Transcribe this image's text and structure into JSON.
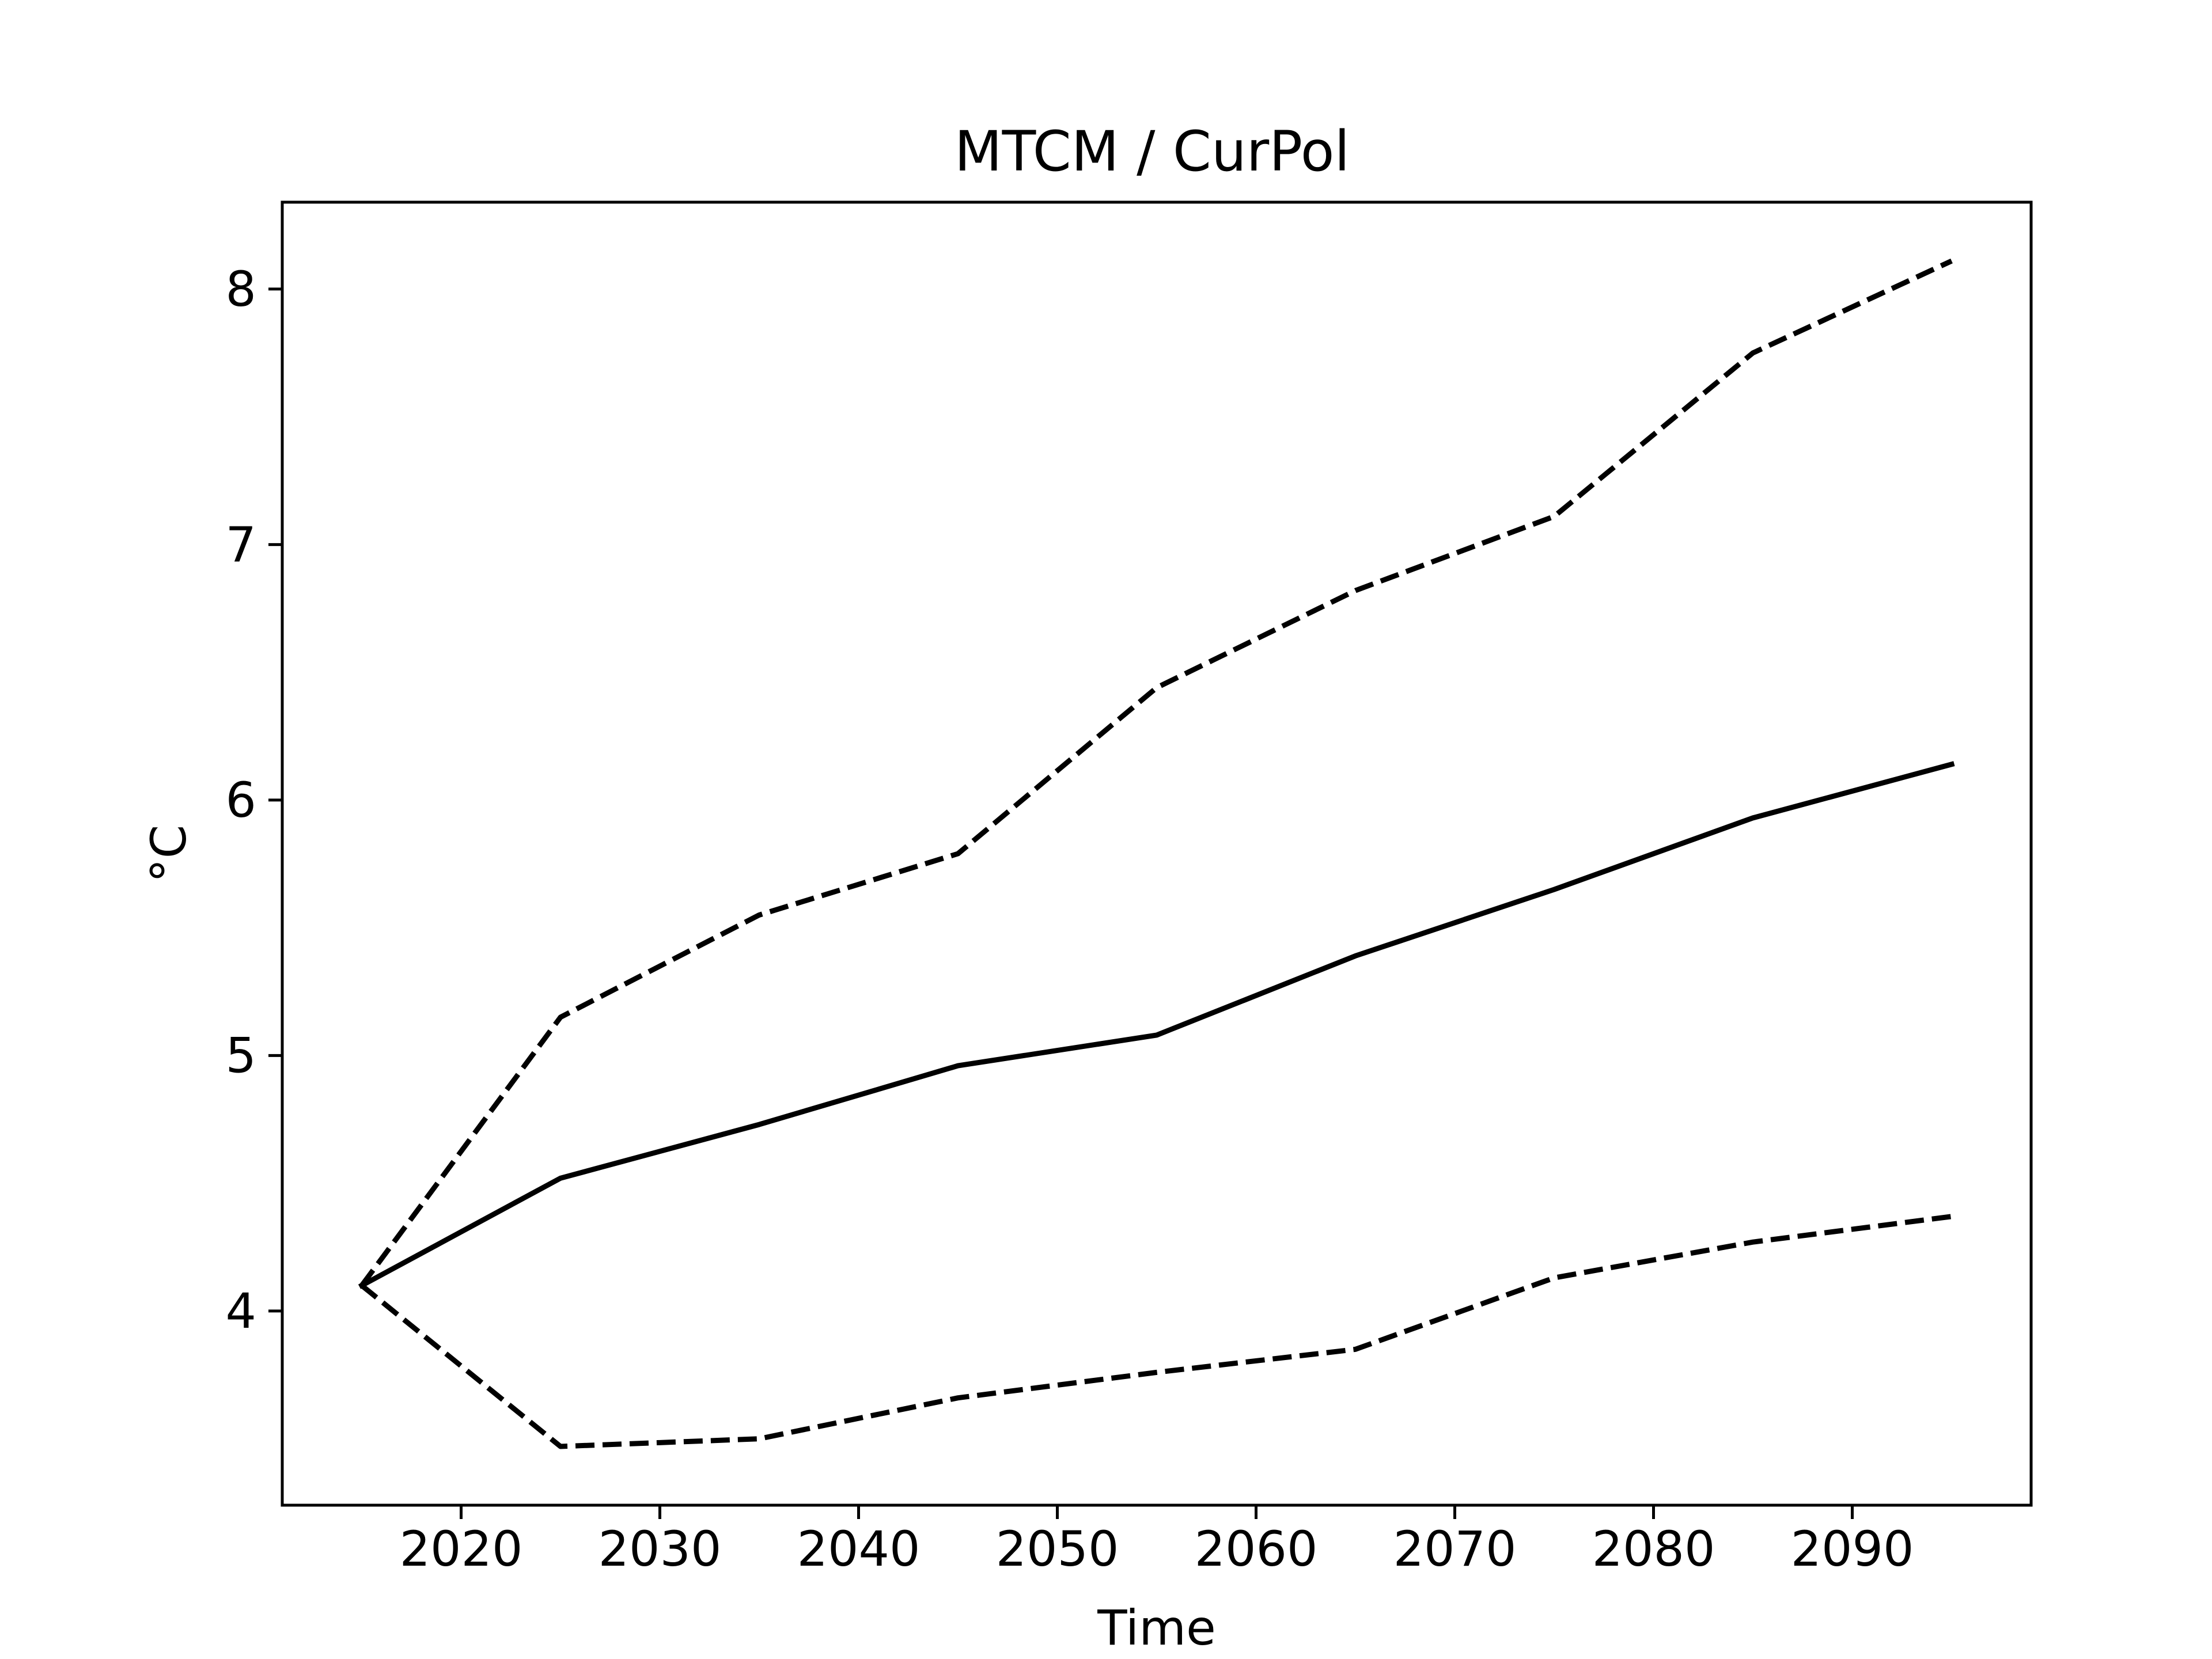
{
  "chart_data": {
    "type": "line",
    "title": "MTCM / CurPol",
    "xlabel": "Time",
    "ylabel": "°C",
    "xlim": [
      2011,
      2099
    ],
    "ylim": [
      3.24,
      8.34
    ],
    "grid": false,
    "x_ticks": [
      2020,
      2030,
      2040,
      2050,
      2060,
      2070,
      2080,
      2090
    ],
    "y_ticks": [
      4,
      5,
      6,
      7,
      8
    ],
    "x": [
      2015,
      2025,
      2035,
      2045,
      2055,
      2065,
      2075,
      2085,
      2095
    ],
    "series": [
      {
        "style": "solid",
        "color": "#000000",
        "values": [
          4.1,
          4.52,
          4.73,
          4.96,
          5.08,
          5.39,
          5.65,
          5.93,
          6.14
        ]
      },
      {
        "style": "dashed",
        "color": "#000000",
        "values": [
          4.1,
          5.15,
          5.55,
          5.79,
          6.44,
          6.82,
          7.11,
          7.75,
          8.11
        ]
      },
      {
        "style": "dashed",
        "color": "#000000",
        "values": [
          4.1,
          3.47,
          3.5,
          3.66,
          3.76,
          3.85,
          4.13,
          4.27,
          4.37
        ]
      }
    ]
  }
}
